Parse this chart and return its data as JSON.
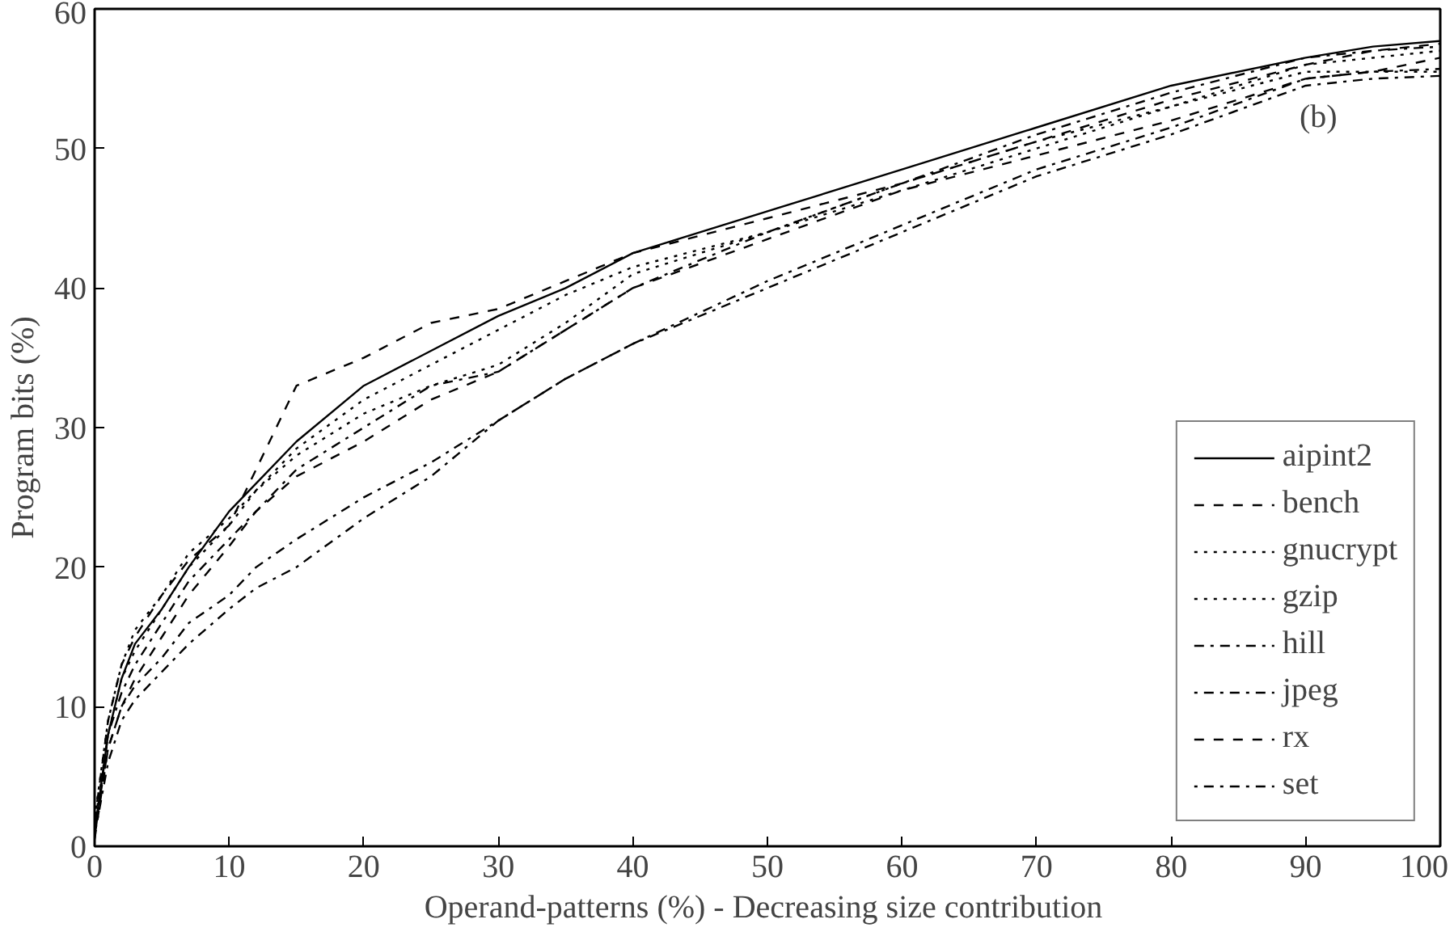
{
  "chart_data": {
    "type": "line",
    "xlabel": "Operand-patterns (%) - Decreasing  size contribution",
    "ylabel": "Program bits (%)",
    "x": [
      0,
      1,
      2,
      3,
      5,
      7,
      10,
      12,
      15,
      20,
      25,
      30,
      35,
      40,
      50,
      60,
      70,
      80,
      90,
      95,
      100
    ],
    "series": [
      {
        "name": "aipint2",
        "color": "#000000",
        "line_style": "solid",
        "values": [
          1,
          8,
          12,
          14.5,
          17,
          20,
          24,
          26,
          29,
          33,
          35.5,
          38,
          40,
          42.5,
          45.5,
          48.5,
          51.5,
          54.5,
          56.5,
          57.3,
          57.7
        ]
      },
      {
        "name": "bench",
        "color": "#000000",
        "line_style": "dashed",
        "values": [
          0.5,
          7,
          10,
          12,
          15,
          18,
          21.5,
          24,
          26.5,
          29,
          32,
          34,
          37,
          40,
          43.5,
          47,
          49.5,
          52,
          55,
          55.5,
          56.5
        ]
      },
      {
        "name": "gnucrypt",
        "color": "#000000",
        "line_style": "dotted",
        "values": [
          1.5,
          8,
          12,
          14,
          17,
          20,
          23,
          25.5,
          28,
          31,
          33,
          34.5,
          37.5,
          41,
          44,
          47.5,
          50.5,
          53,
          56,
          56.5,
          57
        ]
      },
      {
        "name": "gzip",
        "color": "#000000",
        "line_style": "dotted",
        "values": [
          2,
          9,
          13,
          15.5,
          18,
          21,
          23.5,
          25.5,
          28.5,
          32,
          34.5,
          37,
          39.5,
          41.5,
          44,
          47,
          50,
          53,
          55.5,
          55.5,
          55.5
        ]
      },
      {
        "name": "hill",
        "color": "#000000",
        "line_style": "dashdot",
        "values": [
          0.8,
          6,
          9,
          10.5,
          12.5,
          14.5,
          17,
          18.5,
          20,
          23.5,
          26.5,
          30.5,
          33.5,
          36,
          40,
          44,
          48,
          51,
          54.5,
          55,
          55.2
        ]
      },
      {
        "name": "jpeg",
        "color": "#000000",
        "line_style": "dotdash",
        "values": [
          1.2,
          7,
          10,
          11.5,
          13.5,
          16,
          18,
          20,
          22,
          25,
          27.5,
          30.5,
          33.5,
          36,
          40.5,
          44.5,
          48.5,
          51.5,
          55,
          55.5,
          55.7
        ]
      },
      {
        "name": "rx",
        "color": "#000000",
        "line_style": "dashed",
        "values": [
          1.8,
          9,
          13,
          15,
          18,
          20.5,
          23,
          27,
          33,
          35,
          37.5,
          38.5,
          40.5,
          42.5,
          45,
          47.5,
          50.5,
          53.5,
          56,
          57,
          57.5
        ]
      },
      {
        "name": "set",
        "color": "#000000",
        "line_style": "dotdash",
        "values": [
          0.6,
          8,
          11,
          13,
          16,
          19,
          22,
          24,
          27,
          30,
          33,
          34,
          37,
          40,
          44,
          47.5,
          51,
          54,
          56.5,
          57,
          57.3
        ]
      }
    ],
    "annotations": [
      "(b)"
    ],
    "xlim": [
      0,
      100
    ],
    "ylim": [
      0,
      60
    ],
    "xticks": [
      0,
      10,
      20,
      30,
      40,
      50,
      60,
      70,
      80,
      90,
      100
    ],
    "yticks": [
      0,
      10,
      20,
      30,
      40,
      50,
      60
    ],
    "grid": false,
    "legend": "bottom right"
  }
}
